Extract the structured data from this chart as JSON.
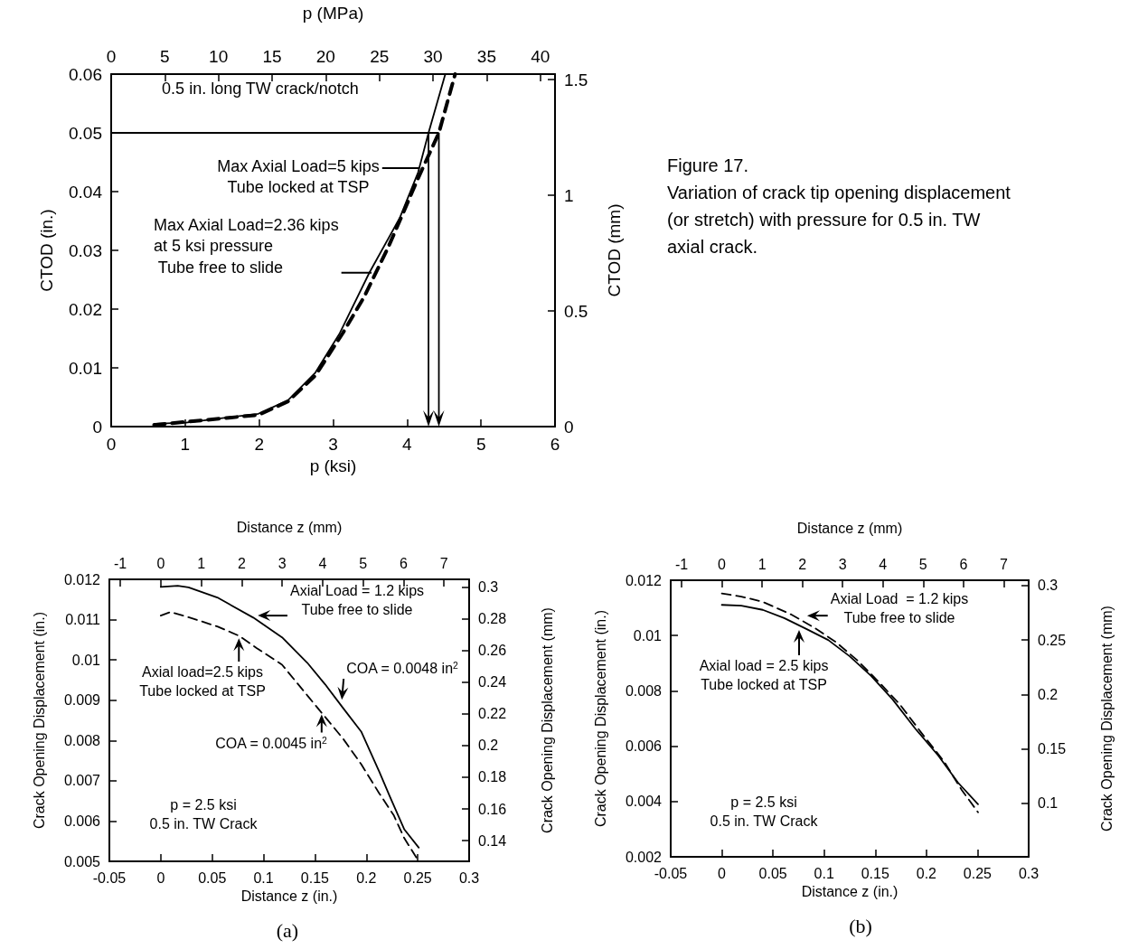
{
  "chart_data": [
    {
      "type": "line",
      "xlabel": "p (ksi)",
      "ylabel": "CTOD (in.)",
      "x2label": "p (MPa)",
      "y2label": "CTOD (mm)",
      "xlim": [
        0,
        6
      ],
      "xticks": [
        0,
        1,
        2,
        3,
        4,
        5,
        6
      ],
      "ylim": [
        0,
        0.06
      ],
      "yticks": [
        0,
        0.01,
        0.02,
        0.03,
        0.04,
        0.05,
        0.06
      ],
      "x2lim": [
        0,
        41.37
      ],
      "x2ticks": [
        0,
        5,
        10,
        15,
        20,
        25,
        30,
        35,
        40
      ],
      "y2lim": [
        0,
        1.524
      ],
      "y2ticks": [
        0,
        0.5,
        1,
        1.5
      ],
      "grid": false,
      "marker": "none",
      "series": [
        {
          "color": "#000000",
          "line_style": "solid",
          "x": [
            0.58,
            1.01,
            1.99,
            2.39,
            2.76,
            3.09,
            3.49,
            3.9,
            4.15,
            4.29,
            4.51,
            4.52
          ],
          "values": [
            0.0005,
            0.0007,
            0.0022,
            0.0045,
            0.0092,
            0.0159,
            0.0262,
            0.0355,
            0.0433,
            0.05,
            0.0597,
            0.06
          ]
        },
        {
          "color": "#000000",
          "line_style": "dashed",
          "x": [
            0.58,
            1.99,
            2.39,
            2.76,
            3.13,
            3.42,
            3.74,
            3.9,
            4.15,
            4.43,
            4.65
          ],
          "values": [
            0.0003,
            0.002,
            0.0043,
            0.0087,
            0.0159,
            0.0221,
            0.0304,
            0.035,
            0.0423,
            0.05,
            0.06
          ]
        }
      ],
      "ref_lines": [
        {
          "axis": "y",
          "value": 0.05,
          "color": "#000000"
        },
        {
          "axis": "x",
          "value": 4.29,
          "color": "#000000"
        },
        {
          "axis": "x",
          "value": 4.43,
          "color": "#000000"
        }
      ],
      "annotations": [
        "0.5 in. long TW crack/notch",
        {
          "text": "Max Axial Load=5 kips\nTube locked at TSP",
          "x": 4.17,
          "y": 0.044
        },
        {
          "text": "Max Axial Load=2.36 kips\nat 5 ksi pressure\n Tube free to slide",
          "x": 3.52,
          "y": 0.0262
        },
        "Figure 17.\nVariation of crack tip opening displacement\n(or stretch) with pressure for 0.5 in. TW\naxial crack."
      ]
    },
    {
      "type": "line",
      "xlabel": "Distance z (in.)",
      "ylabel": "Crack Opening Displacement (in.)",
      "x2label": "Distance z (mm)",
      "y2label": "Crack Opening Displacement (mm)",
      "xlim": [
        -0.05,
        0.3
      ],
      "xticks": [
        -0.05,
        0,
        0.05,
        0.1,
        0.15,
        0.2,
        0.25,
        0.3
      ],
      "ylim": [
        0.005,
        0.012
      ],
      "yticks": [
        0.005,
        0.006,
        0.007,
        0.008,
        0.009,
        0.01,
        0.011,
        0.012
      ],
      "x2lim": [
        -1.27,
        7.62
      ],
      "x2ticks": [
        -1,
        0,
        1,
        2,
        3,
        4,
        5,
        6,
        7
      ],
      "y2lim": [
        0.127,
        0.3048
      ],
      "y2ticks": [
        0.14,
        0.16,
        0.18,
        0.2,
        0.22,
        0.24,
        0.26,
        0.28,
        0.3
      ],
      "grid": false,
      "marker": "none",
      "series": [
        {
          "color": "#000000",
          "line_style": "solid",
          "x": [
            0,
            0.0165,
            0.027,
            0.055,
            0.09,
            0.118,
            0.1425,
            0.16,
            0.1775,
            0.195,
            0.2125,
            0.223,
            0.237,
            0.251
          ],
          "values": [
            0.01181,
            0.01184,
            0.0118,
            0.01155,
            0.01105,
            0.01056,
            0.00993,
            0.00939,
            0.0088,
            0.00822,
            0.00723,
            0.0066,
            0.00579,
            0.00534
          ]
        },
        {
          "color": "#000000",
          "line_style": "dashed",
          "x": [
            0,
            0.0095,
            0.027,
            0.055,
            0.076,
            0.0935,
            0.118,
            0.1425,
            0.16,
            0.1775,
            0.195,
            0.2125,
            0.2265,
            0.237,
            0.251
          ],
          "values": [
            0.0111,
            0.01119,
            0.01106,
            0.01083,
            0.0106,
            0.01029,
            0.00988,
            0.00912,
            0.00858,
            0.00804,
            0.00741,
            0.00669,
            0.00615,
            0.00557,
            0.005
          ]
        }
      ],
      "annotations": [
        {
          "text": "Axial Load = 1.2 kips\nTube free to slide",
          "x": 0.09,
          "y": 0.0111
        },
        {
          "text": "Axial load=2.5 kips\nTube locked at TSP",
          "x": 0.076,
          "y": 0.01065
        },
        {
          "text": "COA = 0.0048 in$^{2}$",
          "x": 0.1758,
          "y": 0.0089
        },
        {
          "text": "COA = 0.0045 in$^{2}$",
          "x": 0.1565,
          "y": 0.00876
        },
        "p = 2.5 ksi\n0.5 in. TW Crack",
        "(a)"
      ]
    },
    {
      "type": "line",
      "xlabel": "Distance z (in.)",
      "ylabel": "Crack Opening Displacement (in.)",
      "x2label": "Distance z (mm)",
      "y2label": "Crack Opening Displacement (mm)",
      "xlim": [
        -0.05,
        0.3
      ],
      "xticks": [
        -0.05,
        0,
        0.05,
        0.1,
        0.15,
        0.2,
        0.25,
        0.3
      ],
      "ylim": [
        0.002,
        0.012
      ],
      "yticks": [
        0.002,
        0.004,
        0.006,
        0.008,
        0.01,
        0.012
      ],
      "x2lim": [
        -1.27,
        7.62
      ],
      "x2ticks": [
        -1,
        0,
        1,
        2,
        3,
        4,
        5,
        6,
        7
      ],
      "y2lim": [
        0.0508,
        0.3048
      ],
      "y2ticks": [
        0.1,
        0.15,
        0.2,
        0.25,
        0.3
      ],
      "grid": false,
      "marker": "none",
      "series": [
        {
          "color": "#000000",
          "line_style": "solid",
          "x": [
            0,
            0.019,
            0.04,
            0.061,
            0.0826,
            0.104,
            0.125,
            0.146,
            0.167,
            0.189,
            0.2116,
            0.231,
            0.2505
          ],
          "values": [
            0.01111,
            0.01108,
            0.01093,
            0.01063,
            0.01024,
            0.00984,
            0.00925,
            0.00854,
            0.00769,
            0.00664,
            0.00566,
            0.00468,
            0.0039
          ]
        },
        {
          "color": "#000000",
          "line_style": "dashed",
          "x": [
            0,
            0.019,
            0.04,
            0.068,
            0.0897,
            0.111,
            0.132,
            0.153,
            0.1745,
            0.196,
            0.217,
            0.2345,
            0.2505
          ],
          "values": [
            0.01152,
            0.01141,
            0.01122,
            0.01076,
            0.0103,
            0.00978,
            0.00912,
            0.00834,
            0.00749,
            0.00644,
            0.00546,
            0.00442,
            0.00361
          ]
        }
      ],
      "annotations": [
        {
          "text": "Axial Load  = 1.2 kips\nTube free to slide",
          "x": 0.079,
          "y": 0.01072
        },
        {
          "text": "Axial load = 2.5 kips\nTube locked at TSP",
          "x": 0.0755,
          "y": 0.01037
        },
        "p = 2.5 ksi\n0.5 in. TW Crack",
        "(b)"
      ]
    }
  ]
}
